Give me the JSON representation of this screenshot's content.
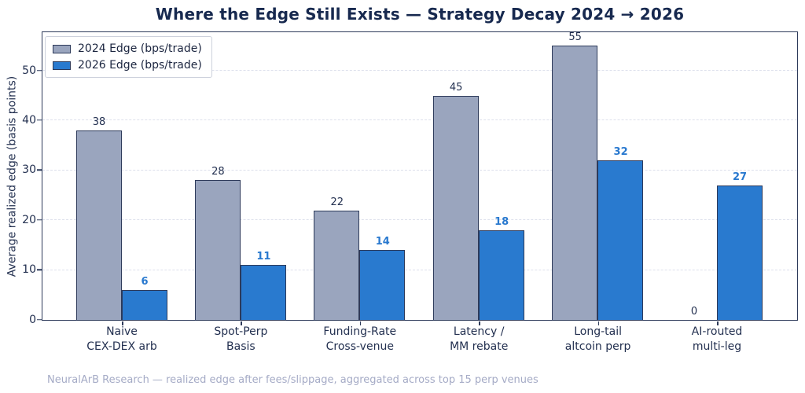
{
  "chart_data": {
    "type": "bar",
    "title": "Where the Edge Still Exists — Strategy Decay 2024 → 2026",
    "xlabel": "",
    "ylabel": "Average realized edge (basis points)",
    "categories": [
      "Naive\nCEX-DEX arb",
      "Spot-Perp\nBasis",
      "Funding-Rate\nCross-venue",
      "Latency /\nMM rebate",
      "Long-tail\naltcoin perp",
      "AI-routed\nmulti-leg"
    ],
    "series": [
      {
        "name": "2024 Edge (bps/trade)",
        "values": [
          38,
          28,
          22,
          45,
          55,
          0
        ],
        "fill": "#9aa5be",
        "edge": "#2d3a5a",
        "value_label_color": "#233050",
        "value_label_bold": false
      },
      {
        "name": "2026 Edge (bps/trade)",
        "values": [
          6,
          11,
          14,
          18,
          32,
          27
        ],
        "fill": "#297acf",
        "edge": "#2d3a5a",
        "value_label_color": "#2979cf",
        "value_label_bold": true
      }
    ],
    "yticks": [
      0,
      10,
      20,
      30,
      40,
      50
    ],
    "ylim": [
      0,
      58
    ],
    "grid": true,
    "grid_style": "dashed-horizontal",
    "legend_position": "upper left"
  },
  "footer": "NeuralArB Research — realized edge after fees/slippage, aggregated across top 15 perp venues",
  "colors": {
    "title_text": "#17294f",
    "axis_text": "#233050",
    "bar_2024_fill": "#9aa5be",
    "bar_2026_fill": "#297acf",
    "bar_edge": "#2d3a5a",
    "gridline": "#dde0ec",
    "footer_text": "#a5abc6",
    "legend_border": "#cdd1dc"
  }
}
